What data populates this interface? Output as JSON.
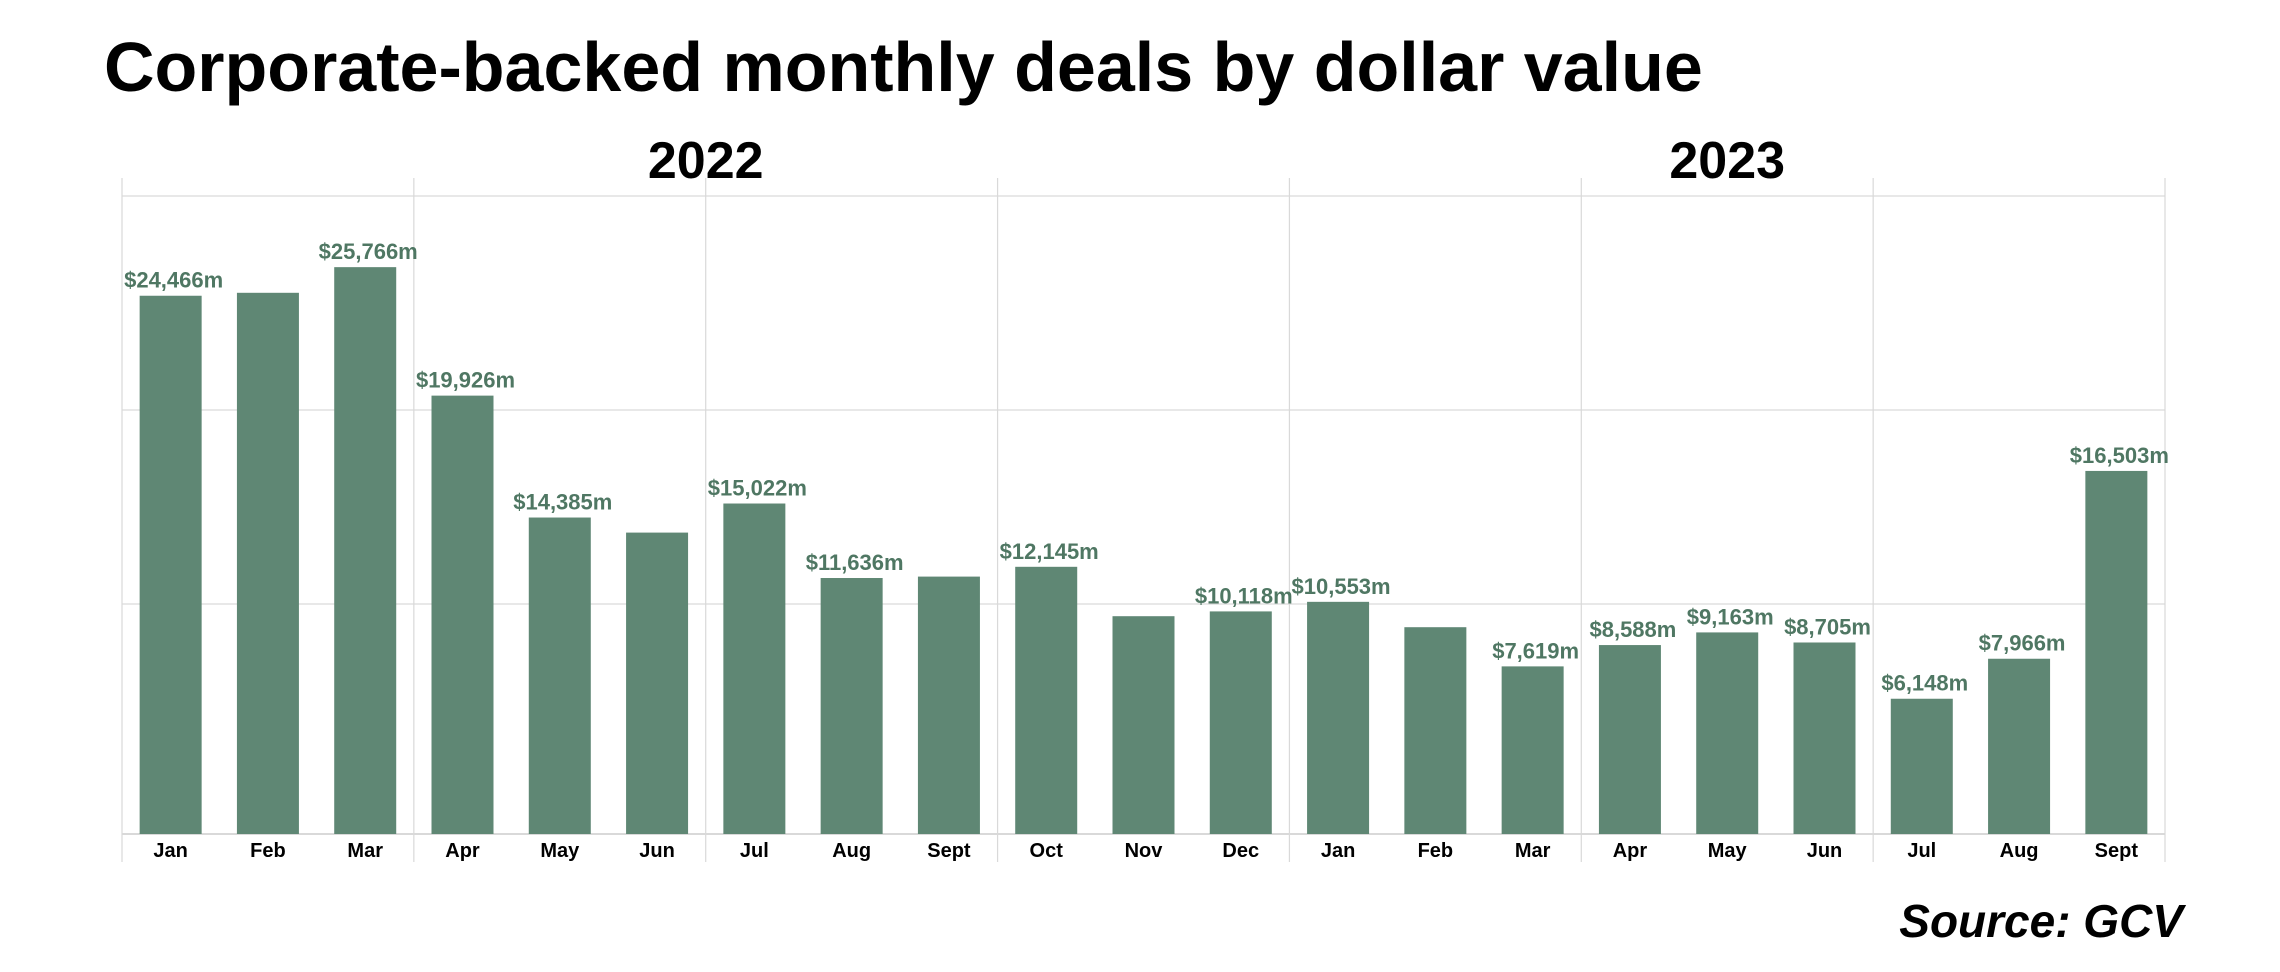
{
  "title": "Corporate-backed monthly deals by dollar value",
  "source": "Source: GCV",
  "colors": {
    "bar": "#5f8774",
    "label": "#4f7763",
    "grid": "#d9d9d9",
    "text": "#000000"
  },
  "chart_data": {
    "type": "bar",
    "title": "Corporate-backed monthly deals by dollar value",
    "xlabel": "",
    "ylabel": "",
    "ylim": [
      0,
      29000
    ],
    "unit": "$m",
    "grid": true,
    "legend": "none",
    "groups": [
      {
        "label": "2022",
        "start": 0,
        "count": 12
      },
      {
        "label": "2023",
        "start": 12,
        "count": 9
      }
    ],
    "quarter_size": 3,
    "categories": [
      "Jan",
      "Feb",
      "Mar",
      "Apr",
      "May",
      "Jun",
      "Jul",
      "Aug",
      "Sept",
      "Oct",
      "Nov",
      "Dec",
      "Jan",
      "Feb",
      "Mar",
      "Apr",
      "May",
      "Jun",
      "Jul",
      "Aug",
      "Sept"
    ],
    "values": [
      24466,
      24600,
      25766,
      19926,
      14385,
      13700,
      15022,
      11636,
      11700,
      12145,
      9900,
      10118,
      10553,
      9400,
      7619,
      8588,
      9163,
      8705,
      6148,
      7966,
      16503
    ],
    "data_labels": [
      "$24,466m",
      "",
      "$25,766m",
      "$19,926m",
      "$14,385m",
      "",
      "$15,022m",
      "$11,636m",
      "",
      "$12,145m",
      "",
      "$10,118m",
      "$10,553m",
      "",
      "$7,619m",
      "$8,588m",
      "$9,163m",
      "$8,705m",
      "$6,148m",
      "$7,966m",
      "$16,503m"
    ]
  }
}
